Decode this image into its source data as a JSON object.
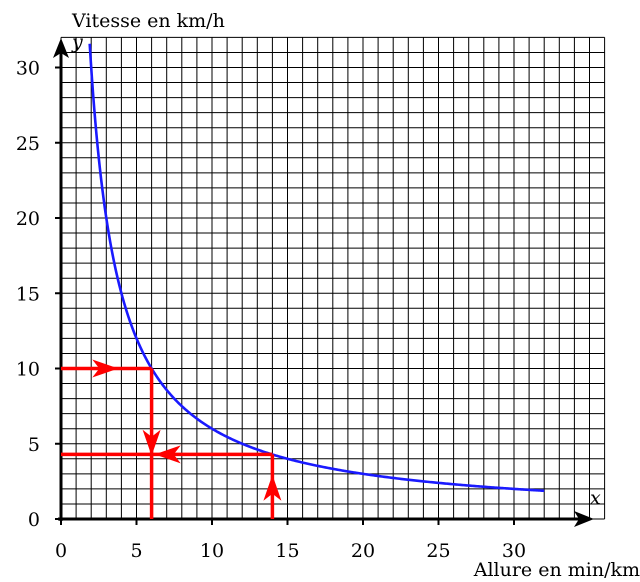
{
  "chart_data": {
    "type": "line",
    "title": "",
    "ylabel": "Vitesse en km/h",
    "xlabel": "Allure en min/km",
    "x_var": "x",
    "y_var": "y",
    "xlim": [
      0,
      36
    ],
    "ylim": [
      0,
      32
    ],
    "x_ticks": [
      0,
      5,
      10,
      15,
      20,
      25,
      30
    ],
    "y_ticks": [
      0,
      5,
      10,
      15,
      20,
      25,
      30
    ],
    "grid": true,
    "grid_step": 1,
    "series": [
      {
        "function": "y = 60 / x",
        "x_domain": [
          1.9,
          32
        ],
        "color": "#1a1aff"
      }
    ],
    "annotations": [
      {
        "kind": "reading",
        "color": "#ff0000",
        "from_axis": "y",
        "value": 10,
        "curve_point": [
          6,
          10
        ],
        "result_axis": "x",
        "result": 6
      },
      {
        "kind": "reading",
        "color": "#ff0000",
        "from_axis": "x",
        "value": 14,
        "curve_point": [
          14,
          4.29
        ],
        "result_axis": "y",
        "result": 4.29
      }
    ]
  }
}
